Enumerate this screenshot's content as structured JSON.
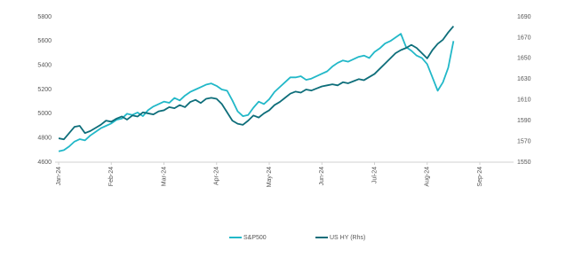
{
  "chart_data": {
    "type": "line",
    "categories": [
      "Jan-24",
      null,
      null,
      null,
      null,
      null,
      null,
      null,
      null,
      null,
      "Feb-24",
      null,
      null,
      null,
      null,
      null,
      null,
      null,
      null,
      null,
      "Mar-24",
      null,
      null,
      null,
      null,
      null,
      null,
      null,
      null,
      null,
      "Apr-24",
      null,
      null,
      null,
      null,
      null,
      null,
      null,
      null,
      null,
      "May-24",
      null,
      null,
      null,
      null,
      null,
      null,
      null,
      null,
      null,
      "Jun-24",
      null,
      null,
      null,
      null,
      null,
      null,
      null,
      null,
      null,
      "Jul-24",
      null,
      null,
      null,
      null,
      null,
      null,
      null,
      null,
      null,
      "Aug-24",
      null,
      null,
      null,
      null,
      null,
      null,
      null,
      null,
      null,
      "Sep-24"
    ],
    "series": [
      {
        "name": "S&P500",
        "color": "#22b8c8",
        "values": [
          4690,
          4700,
          4730,
          4770,
          4790,
          4780,
          4820,
          4850,
          4880,
          4900,
          4920,
          4950,
          4960,
          5000,
          4990,
          5010,
          4980,
          5030,
          5060,
          5080,
          5100,
          5090,
          5130,
          5110,
          5150,
          5180,
          5200,
          5220,
          5240,
          5250,
          5230,
          5200,
          5190,
          5110,
          5020,
          4980,
          4990,
          5050,
          5100,
          5080,
          5120,
          5180,
          5220,
          5260,
          5300,
          5300,
          5310,
          5280,
          5290,
          5310,
          5330,
          5350,
          5390,
          5420,
          5440,
          5430,
          5450,
          5470,
          5480,
          5460,
          5510,
          5540,
          5580,
          5600,
          5630,
          5660,
          5550,
          5520,
          5480,
          5460,
          5410,
          5300,
          5190,
          5260,
          5380,
          5600,
          null,
          null,
          null,
          null,
          null
        ]
      },
      {
        "name": "US HY (Rhs)",
        "color": "#0e6e7a",
        "axis": "y2",
        "values": [
          1573,
          1572,
          1578,
          1584,
          1585,
          1578,
          1580,
          1583,
          1586,
          1590,
          1589,
          1592,
          1594,
          1591,
          1595,
          1594,
          1598,
          1597,
          1596,
          1599,
          1600,
          1603,
          1602,
          1605,
          1603,
          1608,
          1610,
          1607,
          1611,
          1612,
          1611,
          1606,
          1598,
          1590,
          1587,
          1586,
          1590,
          1595,
          1593,
          1597,
          1600,
          1605,
          1608,
          1612,
          1616,
          1618,
          1617,
          1620,
          1619,
          1621,
          1623,
          1624,
          1625,
          1624,
          1627,
          1626,
          1628,
          1630,
          1629,
          1632,
          1635,
          1640,
          1645,
          1650,
          1655,
          1658,
          1660,
          1663,
          1660,
          1655,
          1650,
          1658,
          1664,
          1668,
          1675,
          1681,
          null,
          null,
          null,
          null,
          null
        ]
      }
    ],
    "ylim": [
      4600,
      5800
    ],
    "yticks": [
      4600,
      4800,
      5000,
      5200,
      5400,
      5600,
      5800
    ],
    "y2lim": [
      1550,
      1690
    ],
    "y2ticks": [
      1550,
      1570,
      1590,
      1610,
      1630,
      1650,
      1670,
      1690
    ]
  }
}
